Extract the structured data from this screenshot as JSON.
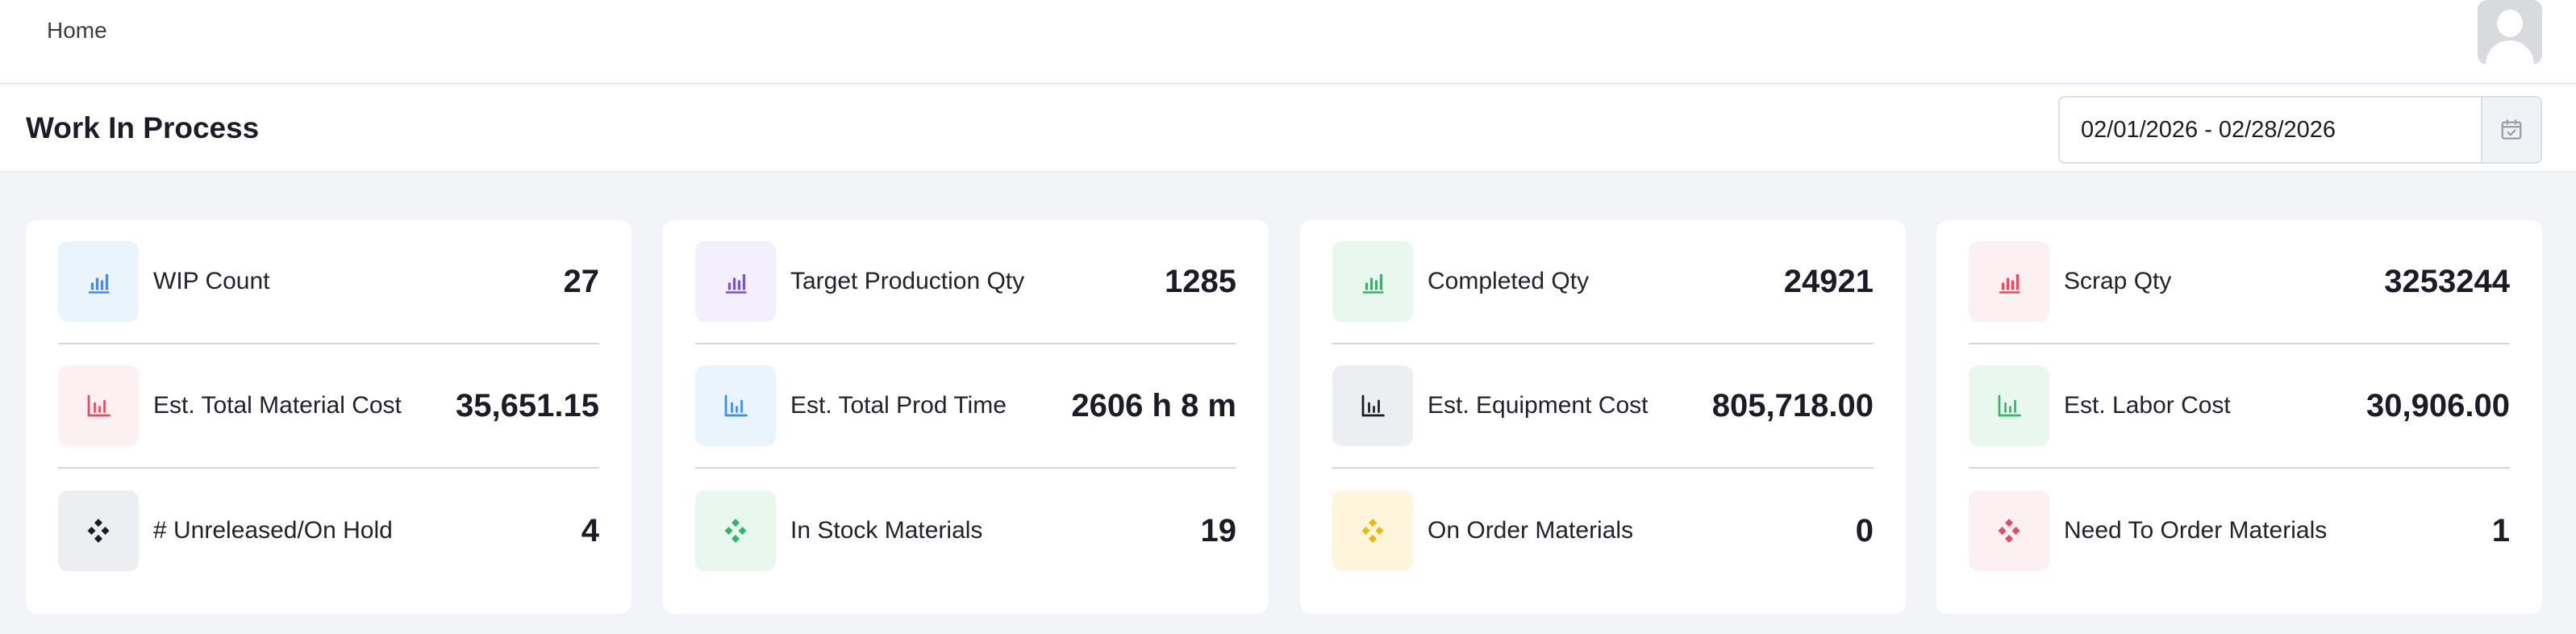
{
  "nav": {
    "home_label": "Home"
  },
  "header": {
    "title": "Work In Process",
    "date_range": "02/01/2026 - 02/28/2026",
    "calendar_icon": "calendar-check-icon"
  },
  "cards": [
    {
      "metrics": [
        {
          "label": "WIP Count",
          "value": "27",
          "icon": "bar-chart-icon",
          "icon_color": "#3d8bfd",
          "icon_bg": "#eaf4fd"
        },
        {
          "label": "Est. Total Material Cost",
          "value": "35,651.15",
          "icon": "bar-chart-outline-icon",
          "icon_color": "#e84a5f",
          "icon_bg": "#fdf0f2"
        },
        {
          "label": "# Unreleased/On Hold",
          "value": "4",
          "icon": "diamond-dots-icon",
          "icon_color": "#1c1c28",
          "icon_bg": "#eceef2"
        }
      ]
    },
    {
      "metrics": [
        {
          "label": "Target Production Qty",
          "value": "1285",
          "icon": "bar-chart-icon",
          "icon_color": "#7b4fe0",
          "icon_bg": "#f3effd"
        },
        {
          "label": "Est. Total Prod Time",
          "value": "2606 h 8 m",
          "icon": "bar-chart-outline-icon",
          "icon_color": "#3d8bfd",
          "icon_bg": "#eaf4fd"
        },
        {
          "label": "In Stock Materials",
          "value": "19",
          "icon": "diamond-dots-icon",
          "icon_color": "#2fb86a",
          "icon_bg": "#e9f8ef"
        }
      ]
    },
    {
      "metrics": [
        {
          "label": "Completed Qty",
          "value": "24921",
          "icon": "bar-chart-icon",
          "icon_color": "#2fb86a",
          "icon_bg": "#e9f8ef"
        },
        {
          "label": "Est. Equipment Cost",
          "value": "805,718.00",
          "icon": "bar-chart-outline-icon",
          "icon_color": "#1c1c28",
          "icon_bg": "#eceef2"
        },
        {
          "label": "On Order Materials",
          "value": "0",
          "icon": "diamond-dots-icon",
          "icon_color": "#f2b705",
          "icon_bg": "#fdf5dc"
        }
      ]
    },
    {
      "metrics": [
        {
          "label": "Scrap Qty",
          "value": "3253244",
          "icon": "bar-chart-icon",
          "icon_color": "#e84a5f",
          "icon_bg": "#fdf0f2"
        },
        {
          "label": "Est. Labor Cost",
          "value": "30,906.00",
          "icon": "bar-chart-outline-icon",
          "icon_color": "#2fb86a",
          "icon_bg": "#e9f8ef"
        },
        {
          "label": "Need To Order Materials",
          "value": "1",
          "icon": "diamond-dots-icon",
          "icon_color": "#e84a5f",
          "icon_bg": "#fdf0f2"
        }
      ]
    }
  ]
}
